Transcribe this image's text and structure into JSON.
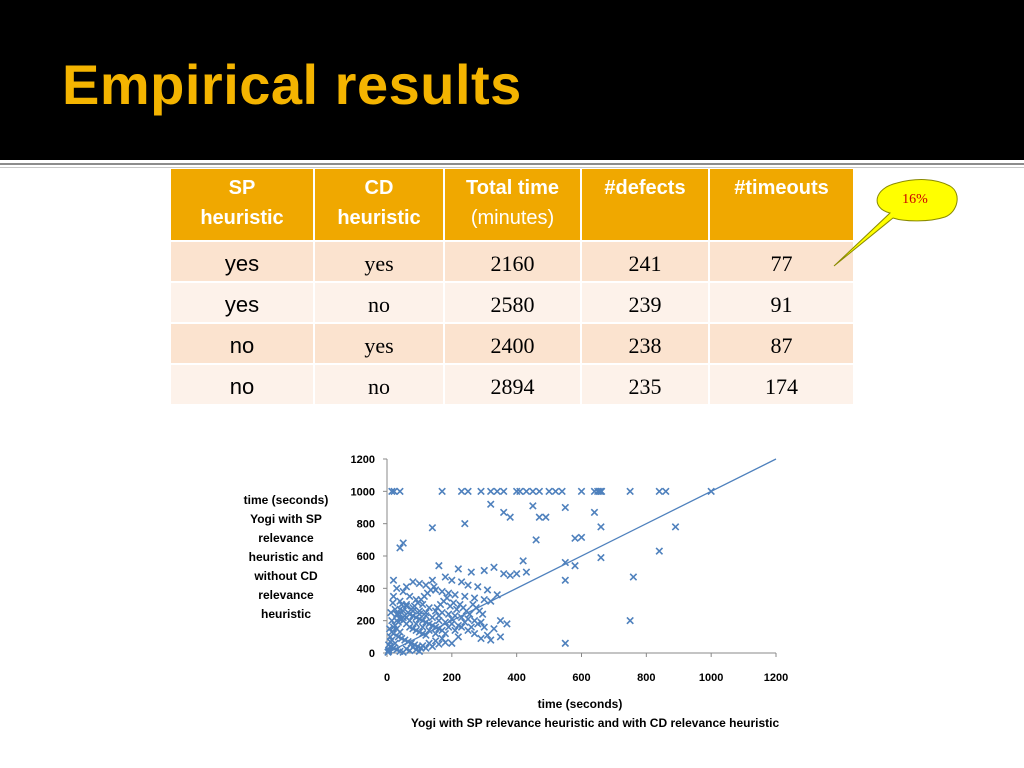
{
  "slide": {
    "title": "Empirical results",
    "callout": "16%"
  },
  "table": {
    "headers": [
      [
        "SP",
        "heuristic"
      ],
      [
        "CD",
        "heuristic"
      ],
      [
        "Total time",
        "(minutes)"
      ],
      [
        "#defects",
        ""
      ],
      [
        "#timeouts",
        ""
      ]
    ],
    "rows": [
      [
        "yes",
        "yes",
        "2160",
        "241",
        "77"
      ],
      [
        "yes",
        "no",
        "2580",
        "239",
        "91"
      ],
      [
        "no",
        "yes",
        "2400",
        "238",
        "87"
      ],
      [
        "no",
        "no",
        "2894",
        "235",
        "174"
      ]
    ]
  },
  "chart_data": {
    "type": "scatter",
    "xlabel": [
      "time (seconds)",
      "Yogi with SP relevance heuristic and with CD relevance heuristic"
    ],
    "ylabel": [
      "time (seconds)",
      "Yogi  with SP",
      "relevance",
      "heuristic and",
      "without CD",
      "relevance",
      "heuristic"
    ],
    "xlim": [
      0,
      1200
    ],
    "ylim": [
      0,
      1200
    ],
    "xticks": [
      0,
      200,
      400,
      600,
      800,
      1000,
      1200
    ],
    "yticks": [
      0,
      200,
      400,
      600,
      800,
      1000,
      1200
    ],
    "marker_color": "#4f81bd",
    "line_color": "#4f81bd",
    "reference_line": [
      [
        0,
        0
      ],
      [
        1200,
        1200
      ]
    ],
    "points": [
      [
        15,
        1000
      ],
      [
        22,
        1000
      ],
      [
        40,
        1000
      ],
      [
        170,
        1000
      ],
      [
        230,
        1000
      ],
      [
        250,
        1000
      ],
      [
        290,
        1000
      ],
      [
        320,
        1000
      ],
      [
        340,
        1000
      ],
      [
        360,
        1000
      ],
      [
        400,
        1000
      ],
      [
        410,
        1000
      ],
      [
        430,
        1000
      ],
      [
        450,
        1000
      ],
      [
        470,
        1000
      ],
      [
        500,
        1000
      ],
      [
        520,
        1000
      ],
      [
        540,
        1000
      ],
      [
        600,
        1000
      ],
      [
        640,
        1000
      ],
      [
        660,
        1000
      ],
      [
        750,
        1000
      ],
      [
        840,
        1000
      ],
      [
        860,
        1000
      ],
      [
        1000,
        1000
      ],
      [
        650,
        1000
      ],
      [
        655,
        1000
      ],
      [
        662,
        1000
      ],
      [
        320,
        920
      ],
      [
        450,
        910
      ],
      [
        550,
        900
      ],
      [
        640,
        870
      ],
      [
        360,
        870
      ],
      [
        380,
        840
      ],
      [
        470,
        840
      ],
      [
        490,
        840
      ],
      [
        240,
        800
      ],
      [
        140,
        775
      ],
      [
        660,
        780
      ],
      [
        890,
        780
      ],
      [
        460,
        700
      ],
      [
        600,
        715
      ],
      [
        580,
        710
      ],
      [
        50,
        680
      ],
      [
        40,
        650
      ],
      [
        840,
        630
      ],
      [
        660,
        590
      ],
      [
        420,
        570
      ],
      [
        550,
        560
      ],
      [
        580,
        540
      ],
      [
        760,
        470
      ],
      [
        550,
        450
      ],
      [
        430,
        500
      ],
      [
        400,
        490
      ],
      [
        160,
        540
      ],
      [
        220,
        520
      ],
      [
        260,
        500
      ],
      [
        300,
        510
      ],
      [
        330,
        530
      ],
      [
        360,
        490
      ],
      [
        380,
        480
      ],
      [
        180,
        470
      ],
      [
        200,
        450
      ],
      [
        230,
        440
      ],
      [
        250,
        420
      ],
      [
        280,
        410
      ],
      [
        140,
        450
      ],
      [
        120,
        420
      ],
      [
        100,
        430
      ],
      [
        80,
        440
      ],
      [
        60,
        410
      ],
      [
        150,
        390
      ],
      [
        170,
        380
      ],
      [
        190,
        370
      ],
      [
        210,
        360
      ],
      [
        240,
        350
      ],
      [
        270,
        340
      ],
      [
        300,
        330
      ],
      [
        320,
        320
      ],
      [
        340,
        360
      ],
      [
        310,
        390
      ],
      [
        20,
        450
      ],
      [
        30,
        400
      ],
      [
        50,
        380
      ],
      [
        70,
        350
      ],
      [
        90,
        330
      ],
      [
        110,
        300
      ],
      [
        130,
        280
      ],
      [
        150,
        260
      ],
      [
        170,
        250
      ],
      [
        190,
        240
      ],
      [
        210,
        230
      ],
      [
        230,
        220
      ],
      [
        250,
        210
      ],
      [
        270,
        200
      ],
      [
        290,
        190
      ],
      [
        120,
        250
      ],
      [
        100,
        240
      ],
      [
        80,
        230
      ],
      [
        60,
        220
      ],
      [
        40,
        210
      ],
      [
        140,
        220
      ],
      [
        160,
        200
      ],
      [
        180,
        190
      ],
      [
        200,
        180
      ],
      [
        220,
        170
      ],
      [
        50,
        200
      ],
      [
        60,
        180
      ],
      [
        70,
        160
      ],
      [
        80,
        150
      ],
      [
        90,
        140
      ],
      [
        100,
        130
      ],
      [
        110,
        120
      ],
      [
        120,
        110
      ],
      [
        30,
        150
      ],
      [
        40,
        130
      ],
      [
        20,
        120
      ],
      [
        35,
        100
      ],
      [
        45,
        90
      ],
      [
        55,
        80
      ],
      [
        65,
        70
      ],
      [
        75,
        60
      ],
      [
        85,
        50
      ],
      [
        95,
        40
      ],
      [
        105,
        30
      ],
      [
        15,
        80
      ],
      [
        25,
        60
      ],
      [
        10,
        40
      ],
      [
        20,
        30
      ],
      [
        30,
        20
      ],
      [
        40,
        10
      ],
      [
        50,
        5
      ],
      [
        5,
        10
      ],
      [
        60,
        25
      ],
      [
        70,
        15
      ],
      [
        80,
        35
      ],
      [
        90,
        20
      ],
      [
        100,
        10
      ],
      [
        110,
        45
      ],
      [
        120,
        30
      ],
      [
        130,
        60
      ],
      [
        140,
        40
      ],
      [
        150,
        75
      ],
      [
        160,
        55
      ],
      [
        170,
        90
      ],
      [
        180,
        65
      ],
      [
        25,
        170
      ],
      [
        35,
        190
      ],
      [
        45,
        210
      ],
      [
        55,
        230
      ],
      [
        65,
        250
      ],
      [
        75,
        270
      ],
      [
        85,
        290
      ],
      [
        95,
        310
      ],
      [
        105,
        330
      ],
      [
        115,
        350
      ],
      [
        125,
        370
      ],
      [
        135,
        390
      ],
      [
        145,
        410
      ],
      [
        155,
        280
      ],
      [
        165,
        300
      ],
      [
        175,
        320
      ],
      [
        185,
        340
      ],
      [
        195,
        290
      ],
      [
        205,
        310
      ],
      [
        215,
        270
      ],
      [
        225,
        300
      ],
      [
        235,
        280
      ],
      [
        245,
        260
      ],
      [
        255,
        240
      ],
      [
        265,
        300
      ],
      [
        275,
        280
      ],
      [
        285,
        260
      ],
      [
        295,
        240
      ],
      [
        300,
        160
      ],
      [
        310,
        110
      ],
      [
        320,
        80
      ],
      [
        330,
        150
      ],
      [
        350,
        100
      ],
      [
        270,
        120
      ],
      [
        290,
        90
      ],
      [
        350,
        200
      ],
      [
        370,
        180
      ],
      [
        250,
        140
      ],
      [
        220,
        100
      ],
      [
        200,
        60
      ],
      [
        180,
        120
      ],
      [
        160,
        150
      ],
      [
        140,
        170
      ],
      [
        120,
        190
      ],
      [
        100,
        210
      ],
      [
        80,
        260
      ],
      [
        60,
        290
      ],
      [
        40,
        320
      ],
      [
        20,
        350
      ],
      [
        25,
        270
      ],
      [
        35,
        240
      ],
      [
        45,
        300
      ],
      [
        15,
        200
      ],
      [
        10,
        100
      ],
      [
        5,
        50
      ],
      [
        8,
        150
      ],
      [
        12,
        250
      ],
      [
        18,
        310
      ],
      [
        550,
        60
      ],
      [
        750,
        200
      ],
      [
        150,
        120
      ],
      [
        130,
        140
      ],
      [
        110,
        160
      ],
      [
        90,
        180
      ],
      [
        70,
        200
      ],
      [
        50,
        220
      ],
      [
        30,
        240
      ],
      [
        210,
        140
      ],
      [
        230,
        160
      ],
      [
        190,
        160
      ],
      [
        170,
        140
      ],
      [
        150,
        160
      ],
      [
        130,
        180
      ],
      [
        110,
        200
      ],
      [
        90,
        220
      ],
      [
        70,
        240
      ],
      [
        50,
        260
      ],
      [
        260,
        160
      ],
      [
        280,
        180
      ],
      [
        240,
        190
      ],
      [
        200,
        210
      ],
      [
        160,
        230
      ],
      [
        120,
        230
      ],
      [
        100,
        260
      ],
      [
        80,
        280
      ],
      [
        60,
        300
      ],
      [
        40,
        270
      ],
      [
        30,
        200
      ],
      [
        20,
        160
      ],
      [
        15,
        130
      ],
      [
        10,
        70
      ],
      [
        6,
        20
      ],
      [
        3,
        5
      ]
    ]
  }
}
